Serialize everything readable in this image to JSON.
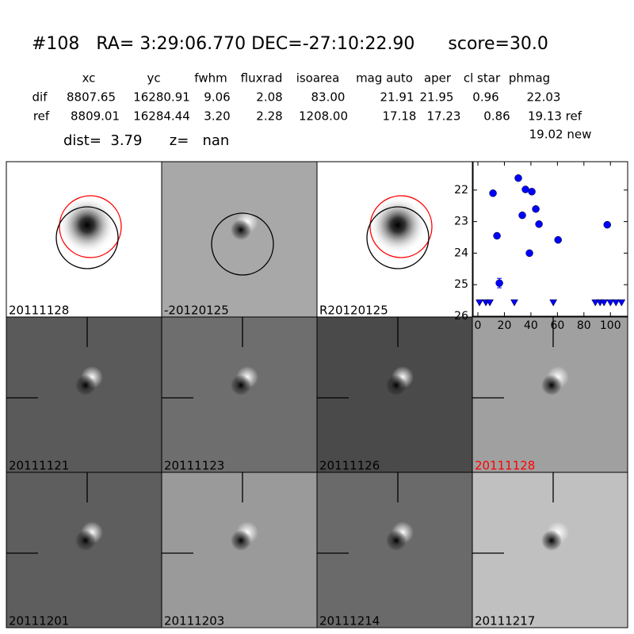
{
  "header": {
    "title": "#108   RA= 3:29:06.770 DEC=-27:10:22.90      score=30.0"
  },
  "table": {
    "columns": [
      "xc",
      "yc",
      "fwhm",
      "fluxrad",
      "isoarea",
      "mag auto",
      "aper",
      "cl star",
      "phmag"
    ],
    "rows": [
      [
        "dif",
        "8807.65",
        "16280.91",
        "9.06",
        "2.08",
        "83.00",
        "21.91",
        "21.95",
        "0.96",
        "22.03"
      ],
      [
        "ref",
        "8809.01",
        "16284.44",
        "3.20",
        "2.28",
        "1208.00",
        "17.18",
        "17.23",
        "0.86",
        "19.13 ref"
      ]
    ],
    "extra": "19.02 new"
  },
  "dist_line": "dist=  3.79      z=   nan",
  "panels": [
    {
      "label": "20111128"
    },
    {
      "label": "-20120125"
    },
    {
      "label": "R20120125"
    },
    {
      "label": "20111121"
    },
    {
      "label": "20111123"
    },
    {
      "label": "20111126"
    },
    {
      "label": "20111128",
      "color": "#ff0000"
    },
    {
      "label": "20111201"
    },
    {
      "label": "20111203"
    },
    {
      "label": "20111214"
    },
    {
      "label": "20111217"
    }
  ],
  "chart_data": {
    "type": "scatter",
    "xlim": [
      -3.6,
      113
    ],
    "xticks": [
      0,
      20,
      40,
      60,
      80,
      100
    ],
    "ylim": [
      26,
      21.1
    ],
    "yticks": [
      22,
      23,
      24,
      25,
      26
    ],
    "series": [
      {
        "color": "#0000ff",
        "marker": "o",
        "x": [
          11.4,
          14.4,
          16.2,
          30.5,
          33.5,
          35.9,
          38.9,
          40.7,
          43.7,
          46.1,
          60.5,
          97.6
        ],
        "values": [
          22.1,
          23.45,
          24.95,
          21.62,
          22.8,
          21.98,
          24.0,
          22.05,
          22.6,
          23.08,
          23.58,
          23.1
        ],
        "errors": [
          null,
          null,
          0.15,
          null,
          null,
          null,
          null,
          null,
          null,
          null,
          null,
          null
        ]
      },
      {
        "color": "#0000ff",
        "marker": "v",
        "x": [
          1.2,
          6.0,
          9.0,
          27.5,
          56.9,
          88.6,
          92.2,
          95.2,
          100,
          104.2,
          108.4
        ],
        "values": [
          25.55,
          25.55,
          25.55,
          25.55,
          25.55,
          25.55,
          25.55,
          25.55,
          25.55,
          25.55,
          25.55
        ]
      }
    ]
  }
}
